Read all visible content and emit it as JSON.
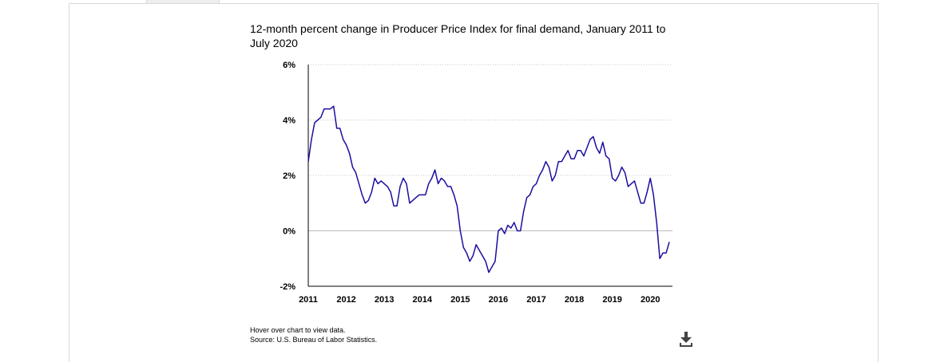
{
  "chart_data": {
    "type": "line",
    "title": "12-month percent change in Producer Price Index for final demand, January 2011 to July 2020",
    "xlabel": "",
    "ylabel": "",
    "ylim": [
      -2,
      6
    ],
    "y_ticks": [
      "6%",
      "4%",
      "2%",
      "0%",
      "-2%"
    ],
    "y_tick_values": [
      6,
      4,
      2,
      0,
      -2
    ],
    "x_ticks": [
      "2011",
      "2012",
      "2013",
      "2014",
      "2015",
      "2016",
      "2017",
      "2018",
      "2019",
      "2020"
    ],
    "x_tick_values": [
      2011,
      2012,
      2013,
      2014,
      2015,
      2016,
      2017,
      2018,
      2019,
      2020
    ],
    "xlim": [
      2011,
      2020.5833
    ],
    "grid": "horizontal-dotted",
    "line_color": "#1a0fa0",
    "series": [
      {
        "x_start": "2011-01",
        "frequency": "monthly",
        "values": [
          2.5,
          3.3,
          3.9,
          4.0,
          4.1,
          4.4,
          4.4,
          4.4,
          4.5,
          3.7,
          3.7,
          3.3,
          3.1,
          2.8,
          2.3,
          2.1,
          1.7,
          1.3,
          1.0,
          1.1,
          1.4,
          1.9,
          1.7,
          1.8,
          1.7,
          1.6,
          1.4,
          0.9,
          0.9,
          1.6,
          1.9,
          1.7,
          1.0,
          1.1,
          1.2,
          1.3,
          1.3,
          1.3,
          1.7,
          1.9,
          2.2,
          1.7,
          1.9,
          1.8,
          1.6,
          1.6,
          1.3,
          0.9,
          0.0,
          -0.6,
          -0.8,
          -1.1,
          -0.9,
          -0.5,
          -0.7,
          -0.9,
          -1.1,
          -1.5,
          -1.3,
          -1.1,
          0.0,
          0.1,
          -0.1,
          0.2,
          0.1,
          0.3,
          0.0,
          0.0,
          0.7,
          1.2,
          1.3,
          1.6,
          1.7,
          2.0,
          2.2,
          2.5,
          2.3,
          1.8,
          2.0,
          2.5,
          2.5,
          2.7,
          2.9,
          2.6,
          2.6,
          2.9,
          2.9,
          2.7,
          3.0,
          3.3,
          3.4,
          3.0,
          2.8,
          3.2,
          2.7,
          2.6,
          1.9,
          1.8,
          2.0,
          2.3,
          2.1,
          1.6,
          1.7,
          1.8,
          1.4,
          1.0,
          1.0,
          1.4,
          1.9,
          1.3,
          0.3,
          -1.0,
          -0.8,
          -0.8,
          -0.4
        ]
      }
    ]
  },
  "footer": {
    "hover_note": "Hover over chart to view data.",
    "source": "Source: U.S. Bureau of Labor Statistics."
  },
  "icons": {
    "download": "download-icon"
  }
}
